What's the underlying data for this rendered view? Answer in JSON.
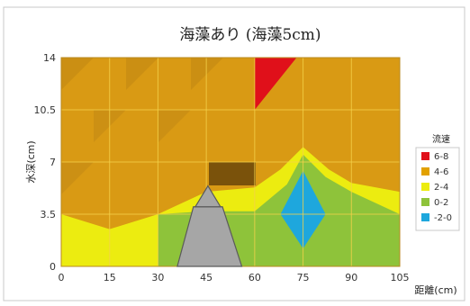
{
  "chart_data": {
    "type": "heatmap",
    "title": "海藻あり (海藻5cm)",
    "xlabel": "距離(cm)",
    "ylabel": "水深(cm)",
    "xlim": [
      0,
      105
    ],
    "ylim": [
      0,
      14
    ],
    "x_ticks": [
      "0",
      "15",
      "30",
      "45",
      "60",
      "75",
      "90",
      "105"
    ],
    "y_ticks": [
      "0",
      "3.5",
      "7",
      "10.5",
      "14"
    ],
    "legend": {
      "title": "流速",
      "position": "right",
      "entries": [
        {
          "label": "6-8",
          "color": "#e0101a"
        },
        {
          "label": "4-6",
          "color": "#e2a100"
        },
        {
          "label": "2-4",
          "color": "#ecec10"
        },
        {
          "label": "0-2",
          "color": "#8ec33a"
        },
        {
          "label": "-2-0",
          "color": "#1ea7dd"
        }
      ]
    },
    "regions": [
      {
        "range": "6-8",
        "polygon": [
          [
            60,
            14
          ],
          [
            73,
            14
          ],
          [
            60,
            10.5
          ]
        ]
      },
      {
        "range": "2-4",
        "polygon": [
          [
            0,
            3.5
          ],
          [
            15,
            2.5
          ],
          [
            30,
            3.5
          ],
          [
            45,
            5
          ],
          [
            60,
            5.3
          ],
          [
            68,
            6.5
          ],
          [
            75,
            8
          ],
          [
            83,
            6.5
          ],
          [
            90,
            5.6
          ],
          [
            105,
            5
          ],
          [
            105,
            0
          ],
          [
            0,
            0
          ]
        ]
      },
      {
        "range": "0-2",
        "polygon": [
          [
            30,
            3.5
          ],
          [
            45,
            3.7
          ],
          [
            60,
            3.7
          ],
          [
            70,
            5.5
          ],
          [
            75,
            7.5
          ],
          [
            82,
            6
          ],
          [
            90,
            5
          ],
          [
            105,
            3.5
          ],
          [
            105,
            0
          ],
          [
            30,
            0
          ]
        ]
      },
      {
        "range": "-2-0",
        "polygon": [
          [
            68,
            3.5
          ],
          [
            75,
            6.4
          ],
          [
            82,
            3.5
          ],
          [
            75,
            1.2
          ]
        ]
      }
    ],
    "obstacle": {
      "label": "海藻",
      "bottom": [
        36,
        56
      ],
      "top": [
        41,
        50
      ],
      "height": 4
    }
  }
}
